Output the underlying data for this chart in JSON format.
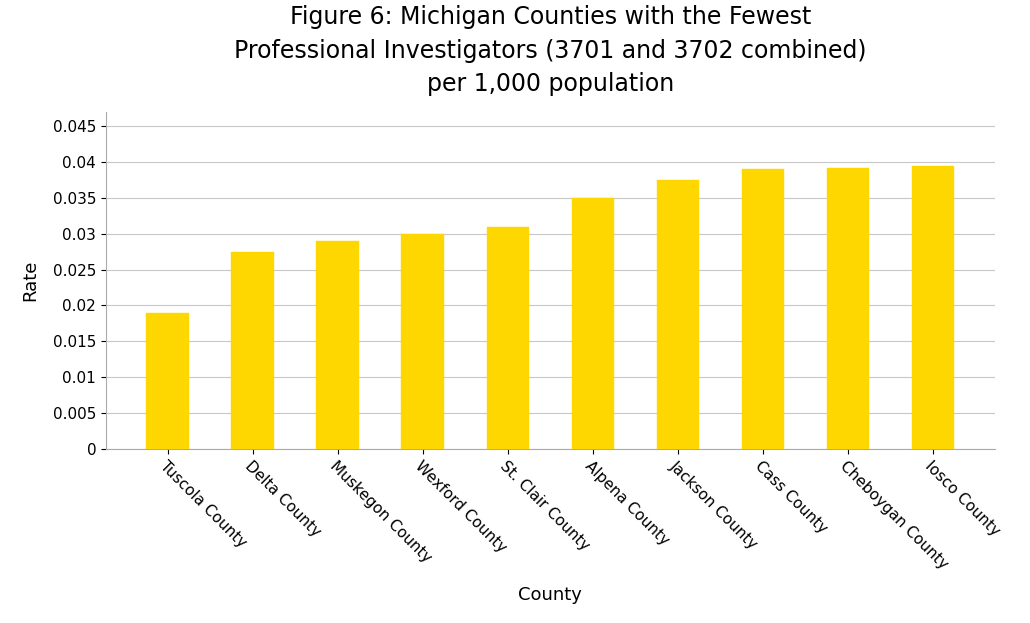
{
  "title": "Figure 6: Michigan Counties with the Fewest\nProfessional Investigators (3701 and 3702 combined)\nper 1,000 population",
  "xlabel": "County",
  "ylabel": "Rate",
  "categories": [
    "Tuscola County",
    "Delta County",
    "Muskegon County",
    "Wexford County",
    "St. Clair County",
    "Alpena County",
    "Jackson County",
    "Cass County",
    "Cheboygan County",
    "Iosco County"
  ],
  "values": [
    0.019,
    0.0275,
    0.029,
    0.03,
    0.031,
    0.035,
    0.0375,
    0.039,
    0.0392,
    0.0395
  ],
  "bar_color": "#FFD700",
  "bar_edge_color": "#FFD700",
  "ylim": [
    0,
    0.047
  ],
  "ytick_values": [
    0,
    0.005,
    0.01,
    0.015,
    0.02,
    0.025,
    0.03,
    0.035,
    0.04,
    0.045
  ],
  "ytick_labels": [
    "0",
    "0.005",
    "0.01",
    "0.015",
    "0.02",
    "0.025",
    "0.03",
    "0.035",
    "0.04",
    "0.045"
  ],
  "background_color": "#FFFFFF",
  "title_fontsize": 17,
  "axis_label_fontsize": 13,
  "tick_fontsize": 11,
  "xtick_fontsize": 11,
  "grid_color": "#C8C8C8",
  "bar_width": 0.5
}
